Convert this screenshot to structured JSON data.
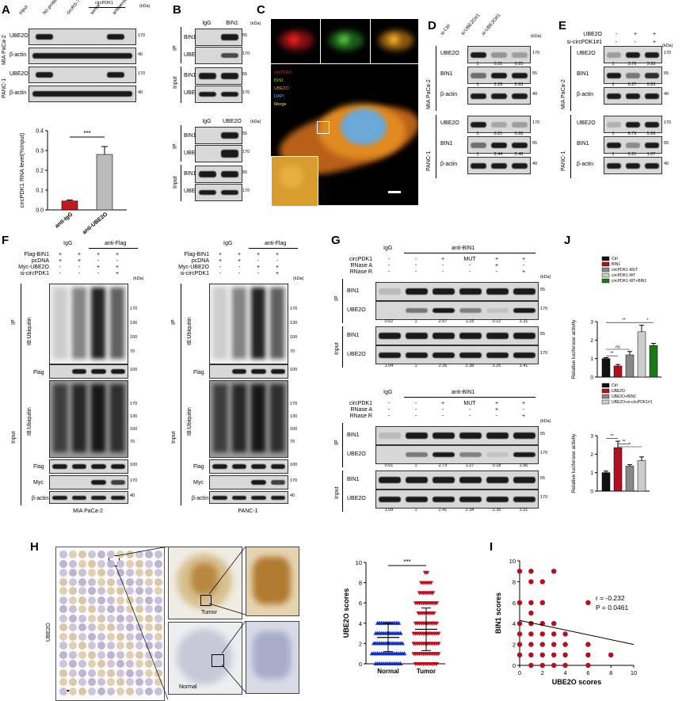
{
  "panels": {
    "A": {
      "letter": "A",
      "cols": [
        "Input",
        "No probe",
        "circRS-7 sense",
        "sense",
        "antisense"
      ],
      "group": "circPDK1",
      "cells": [
        "MIA PaCa-2",
        "PANC-1"
      ],
      "rows": [
        "UBE2O",
        "β-actin"
      ],
      "kda_label": "(kDa)",
      "kda": [
        "170",
        "40"
      ],
      "chart_data": {
        "type": "bar",
        "categories": [
          "anti-IgG",
          "anti-UBE2O"
        ],
        "values": [
          0.045,
          0.28
        ],
        "ylabel": "circPDK1 RNA level(%Input)",
        "ylim": [
          0,
          0.4
        ],
        "yticks": [
          "0.0",
          "0.1",
          "0.2",
          "0.3",
          "0.4"
        ],
        "significance": "***",
        "colors": [
          "#c0191c",
          "#bbbbbb"
        ]
      }
    },
    "B": {
      "letter": "B",
      "top_cols": [
        "IgG",
        "BIN1"
      ],
      "bottom_cols": [
        "IgG",
        "UBE2O"
      ],
      "ip": "IP",
      "input": "Input",
      "rows": [
        "BIN1",
        "UBE2O"
      ],
      "kda": [
        "55",
        "170"
      ],
      "kda_label": "(kDa)"
    },
    "C": {
      "letter": "C",
      "legend": [
        "circPDK1",
        "BIN1",
        "UBE2O",
        "DAPI",
        "Merge"
      ],
      "legend_colors": [
        "#e0302a",
        "#7bd45a",
        "#e8a030",
        "#4fb0ff",
        "#e8e060"
      ]
    },
    "D": {
      "letter": "D",
      "cols": [
        "si-Ctrl",
        "si-UBE2O#1",
        "si-UBE2O#1"
      ],
      "cells": [
        "MIA PaCa-2",
        "PANC-1"
      ],
      "rows": [
        "UBE2O",
        "BIN1",
        "β-actin"
      ],
      "kda": [
        "170",
        "55",
        "40"
      ],
      "kda_label": "(kDa)",
      "quant": [
        [
          "1",
          "0.31",
          "0.25"
        ],
        [
          "1",
          "2.29",
          "2.63"
        ],
        [
          "1",
          "0.21",
          "0.28"
        ],
        [
          "1",
          "2.44",
          "2.48"
        ]
      ]
    },
    "E": {
      "letter": "E",
      "conds": [
        "UBE2O",
        "si-circPDK1#1"
      ],
      "signs": [
        [
          "-",
          "+",
          "+"
        ],
        [
          "-",
          "-",
          "+"
        ]
      ],
      "cells": [
        "MIA PaCa-2",
        "PANC-1"
      ],
      "rows": [
        "UBE2O",
        "BIN1",
        "β-actin"
      ],
      "kda": [
        "170",
        "55",
        "40"
      ],
      "kda_label": "(kDa)",
      "quant": [
        [
          "1",
          "3.76",
          "3.93"
        ],
        [
          "1",
          "0.27",
          "0.83"
        ],
        [
          "1",
          "6.79",
          "5.99"
        ],
        [
          "1",
          "0.21",
          "1.07"
        ]
      ]
    },
    "F": {
      "letter": "F",
      "head": [
        "IgG",
        "anti-Flag"
      ],
      "conds": [
        "Flag-BIN1",
        "pcDNA",
        "Myc-UBE2O",
        "si-circPDK1"
      ],
      "signs": [
        [
          "+",
          "+",
          "+",
          "+"
        ],
        [
          "+",
          "+",
          "-",
          "-"
        ],
        [
          "-",
          "-",
          "+",
          "+"
        ],
        [
          "-",
          "-",
          "-",
          "+"
        ]
      ],
      "ip": "IP",
      "input": "Input",
      "ib": "IB:Ubiquitin",
      "rows": [
        "Flag",
        "Myc",
        "β-actin"
      ],
      "kda": [
        "170",
        "130",
        "100",
        "70",
        "100",
        "170",
        "130",
        "100",
        "70",
        "100",
        "170",
        "40"
      ],
      "kda_label": "(kDa)",
      "cells": [
        "MIA PaCa-2",
        "PANC-1"
      ]
    },
    "G": {
      "letter": "G",
      "head": [
        "IgG",
        "anti-BIN1"
      ],
      "conds": [
        "circPDK1",
        "RNase A",
        "RNase R"
      ],
      "signs": [
        [
          "-",
          "-",
          "+",
          "MUT",
          "+",
          "+"
        ],
        [
          "-",
          "-",
          "-",
          "-",
          "+",
          "-"
        ],
        [
          "-",
          "-",
          "-",
          "-",
          "-",
          "+"
        ]
      ],
      "ip": "IP",
      "input": "Input",
      "rows": [
        "BIN1",
        "UBE2O"
      ],
      "kda": [
        "55",
        "170"
      ],
      "kda_label": "(kDa)",
      "quant_top_ip": [
        "0.02",
        "1",
        "2.57",
        "1.15",
        "0.12",
        "2.31"
      ],
      "quant_top_in": [
        "1.04",
        "1",
        "2.26",
        "2.38",
        "2.25",
        "2.41"
      ],
      "quant_bot_ip": [
        "0.01",
        "1",
        "2.73",
        "1.27",
        "0.18",
        "2.56"
      ],
      "quant_bot_in": [
        "1.09",
        "1",
        "2.41",
        "2.34",
        "2.35",
        "2.21"
      ]
    },
    "J": {
      "letter": "J",
      "chart_data": [
        {
          "type": "bar",
          "categories": [
            "Ctrl",
            "BIN1",
            "circPDK1-MUT",
            "circPDK1-WT",
            "circPDK1-WT+BIN1"
          ],
          "values": [
            1.0,
            0.6,
            1.2,
            2.45,
            1.7
          ],
          "errors": [
            0.05,
            0.08,
            0.18,
            0.35,
            0.12
          ],
          "colors": [
            "#111111",
            "#b01020",
            "#888888",
            "#cccccc",
            "#1a7a1a"
          ],
          "ylabel": "Relative luciferase activity",
          "ylim": [
            0,
            3
          ],
          "yticks": [
            "0",
            "1",
            "2",
            "3"
          ],
          "sig": [
            "**",
            "ns",
            "**",
            "*"
          ]
        },
        {
          "type": "bar",
          "categories": [
            "Ctrl",
            "UBE2O",
            "UBE2O+BIN1",
            "UBE2O+si-circPDK1#1"
          ],
          "values": [
            1.0,
            2.35,
            1.35,
            1.65
          ],
          "errors": [
            0.08,
            0.35,
            0.08,
            0.2
          ],
          "colors": [
            "#111111",
            "#b01020",
            "#888888",
            "#cccccc"
          ],
          "ylabel": "Relative luciferase activity",
          "ylim": [
            0,
            3
          ],
          "yticks": [
            "0",
            "1",
            "2",
            "3"
          ],
          "sig": [
            "**",
            "**",
            "*"
          ]
        }
      ]
    },
    "H": {
      "letter": "H",
      "side": "UBE2O",
      "tumor": "Tumor",
      "normal": "Normal",
      "chart_data": {
        "type": "scatter",
        "categories": [
          "Normal",
          "Tumor"
        ],
        "ylabel": "UBE2O scores",
        "ylim": [
          0,
          10
        ],
        "yticks": [
          "0",
          "2",
          "4",
          "6",
          "8",
          "10"
        ],
        "significance": "***",
        "means": [
          2.6,
          3.4
        ],
        "sd": [
          1.4,
          2.1
        ],
        "colors": [
          "#1030c8",
          "#c01020"
        ]
      }
    },
    "I": {
      "letter": "I",
      "chart_data": {
        "type": "scatter",
        "xlabel": "UBE2O scores",
        "ylabel": "BIN1 scores",
        "xlim": [
          0,
          10
        ],
        "ylim": [
          0,
          10
        ],
        "xticks": [
          "0",
          "2",
          "4",
          "6",
          "8",
          "10"
        ],
        "yticks": [
          "0",
          "2",
          "4",
          "6",
          "8",
          "10"
        ],
        "r": "r = -0.232",
        "p": "P = 0.0461",
        "color": "#b01020",
        "points": [
          [
            0,
            1
          ],
          [
            0,
            2
          ],
          [
            0,
            3
          ],
          [
            0,
            4
          ],
          [
            0,
            6
          ],
          [
            0,
            9
          ],
          [
            1,
            0
          ],
          [
            1,
            1
          ],
          [
            1,
            2
          ],
          [
            1,
            3
          ],
          [
            1,
            4
          ],
          [
            1,
            5
          ],
          [
            1,
            6
          ],
          [
            1,
            8
          ],
          [
            1,
            9
          ],
          [
            2,
            0
          ],
          [
            2,
            1
          ],
          [
            2,
            2
          ],
          [
            2,
            3
          ],
          [
            2,
            4
          ],
          [
            2,
            6
          ],
          [
            2,
            8
          ],
          [
            3,
            0
          ],
          [
            3,
            1
          ],
          [
            3,
            2
          ],
          [
            3,
            3
          ],
          [
            3,
            4
          ],
          [
            3,
            9
          ],
          [
            4,
            0
          ],
          [
            4,
            1
          ],
          [
            4,
            2
          ],
          [
            4,
            3
          ],
          [
            6,
            0
          ],
          [
            6,
            1
          ],
          [
            6,
            2
          ],
          [
            6,
            6
          ],
          [
            8,
            1
          ]
        ],
        "fit": [
          [
            0,
            4.3
          ],
          [
            10,
            2.0
          ]
        ]
      }
    }
  }
}
